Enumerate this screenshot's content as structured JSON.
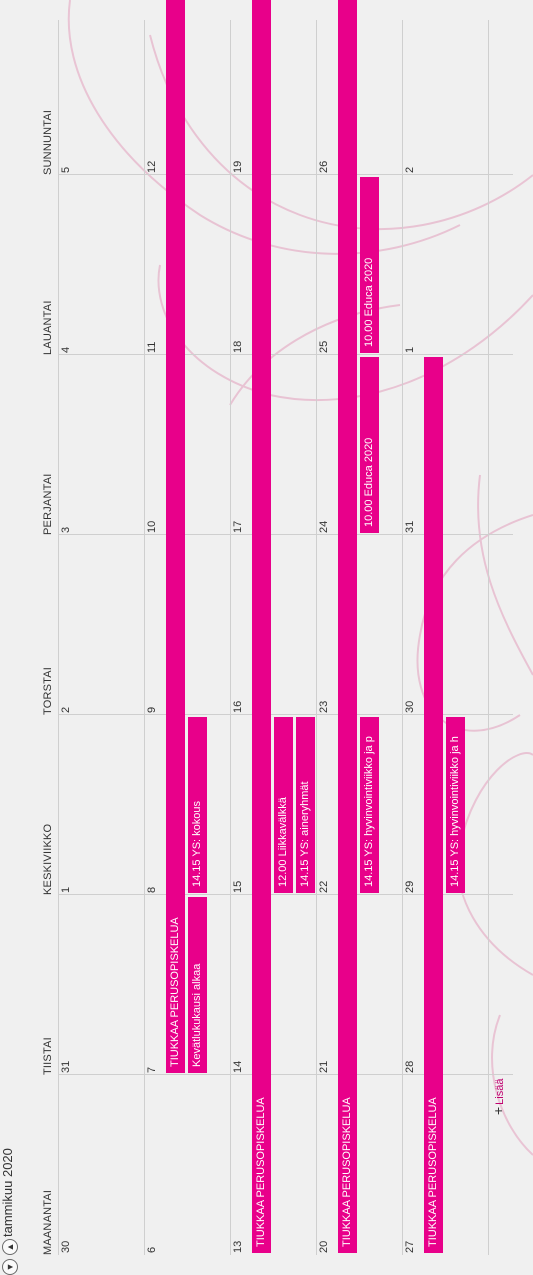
{
  "header": {
    "month_title": "tammikuu 2020",
    "prev_icon": "arrow-up-circle-icon",
    "next_icon": "arrow-down-circle-icon"
  },
  "weekdays": [
    "MAANANTAI",
    "TIISTAI",
    "KESKIVIIKKO",
    "TORSTAI",
    "PERJANTAI",
    "LAUANTAI",
    "SUNNUNTAI"
  ],
  "weeks": [
    [
      "30",
      "31",
      "1",
      "2",
      "3",
      "4",
      "5"
    ],
    [
      "6",
      "7",
      "8",
      "9",
      "10",
      "11",
      "12"
    ],
    [
      "13",
      "14",
      "15",
      "16",
      "17",
      "18",
      "19"
    ],
    [
      "20",
      "21",
      "22",
      "23",
      "24",
      "25",
      "26"
    ],
    [
      "27",
      "28",
      "29",
      "30",
      "31",
      "1",
      "2"
    ]
  ],
  "events": [
    {
      "label": "TIUKKAA PERUSOPISKELUA",
      "week": 0,
      "start_day": 1,
      "end_day": 6,
      "lane": 0
    },
    {
      "label": "Kevätlukukausi alkaa",
      "week": 0,
      "start_day": 1,
      "end_day": 1,
      "lane": 1
    },
    {
      "label": "14.15 YS: kokous",
      "week": 0,
      "start_day": 2,
      "end_day": 2,
      "lane": 1
    },
    {
      "label": "TIUKKAA PERUSOPISKELUA",
      "week": 1,
      "start_day": 0,
      "end_day": 6,
      "lane": 0
    },
    {
      "label": "12.00 Liikkavälkkä",
      "week": 1,
      "start_day": 2,
      "end_day": 2,
      "lane": 1
    },
    {
      "label": "14.15 YS: aineryhmät",
      "week": 1,
      "start_day": 2,
      "end_day": 2,
      "lane": 2
    },
    {
      "label": "TIUKKAA PERUSOPISKELUA",
      "week": 2,
      "start_day": 0,
      "end_day": 6,
      "lane": 0
    },
    {
      "label": "14.15 YS: hyvinvointiviikko ja p",
      "week": 2,
      "start_day": 2,
      "end_day": 2,
      "lane": 1
    },
    {
      "label": "10.00 Educa 2020",
      "week": 2,
      "start_day": 4,
      "end_day": 4,
      "lane": 1
    },
    {
      "label": "10.00 Educa 2020",
      "week": 2,
      "start_day": 5,
      "end_day": 5,
      "lane": 1
    },
    {
      "label": "TIUKKAA PERUSOPISKELUA",
      "week": 3,
      "start_day": 0,
      "end_day": 4,
      "lane": 0
    },
    {
      "label": "14.15 YS: hyvinvointiviikko ja h",
      "week": 3,
      "start_day": 2,
      "end_day": 2,
      "lane": 1
    }
  ],
  "add_link": {
    "label": "Lisää",
    "icon": "plus-icon"
  },
  "colors": {
    "event": "#e8008a",
    "accent_text": "#c0006f",
    "grid": "#cfcfcf",
    "background": "#f0f0f0"
  }
}
